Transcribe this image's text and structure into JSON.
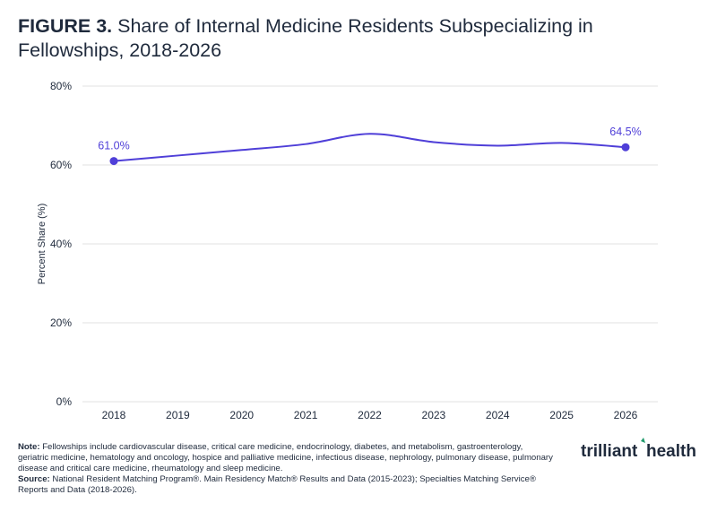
{
  "title": {
    "figure_label": "FIGURE 3.",
    "text": "Share of Internal Medicine Residents Subspecializing in Fellowships, 2018-2026"
  },
  "chart_data": {
    "type": "line",
    "x": [
      "2018",
      "2019",
      "2020",
      "2021",
      "2022",
      "2023",
      "2024",
      "2025",
      "2026"
    ],
    "series": [
      {
        "values": [
          61.0,
          62.4,
          63.8,
          65.3,
          67.9,
          65.8,
          64.9,
          65.6,
          64.5
        ],
        "color": "#4f3fd8"
      }
    ],
    "ylabel": "Percent Share (%)",
    "xlabel": "",
    "ylim": [
      0,
      80
    ],
    "yticks": [
      0,
      20,
      40,
      60,
      80
    ],
    "ytick_labels": [
      "0%",
      "20%",
      "40%",
      "60%",
      "80%"
    ],
    "data_labels": [
      {
        "x": "2018",
        "text": "61.0%"
      },
      {
        "x": "2026",
        "text": "64.5%"
      }
    ],
    "grid": true,
    "legend": "none"
  },
  "notes": {
    "note_label": "Note:",
    "note_text": "Fellowships include cardiovascular disease, critical care medicine, endocrinology, diabetes, and metabolism, gastroenterology, geriatric medicine, hematology and oncology, hospice and palliative medicine, infectious disease, nephrology, pulmonary disease, pulmonary disease and critical care medicine, rheumatology and sleep medicine.",
    "source_label": "Source:",
    "source_text": "National Resident Matching Program®. Main Residency Match® Results and Data (2015-2023); Specialties Matching Service® Reports and Data (2018-2026)."
  },
  "logo": {
    "text_left": "trilliant",
    "text_right": "health",
    "accent": "#1f9a6b"
  },
  "colors": {
    "line": "#4f3fd8",
    "text": "#1f2a3c",
    "grid": "#e2e2e2"
  }
}
